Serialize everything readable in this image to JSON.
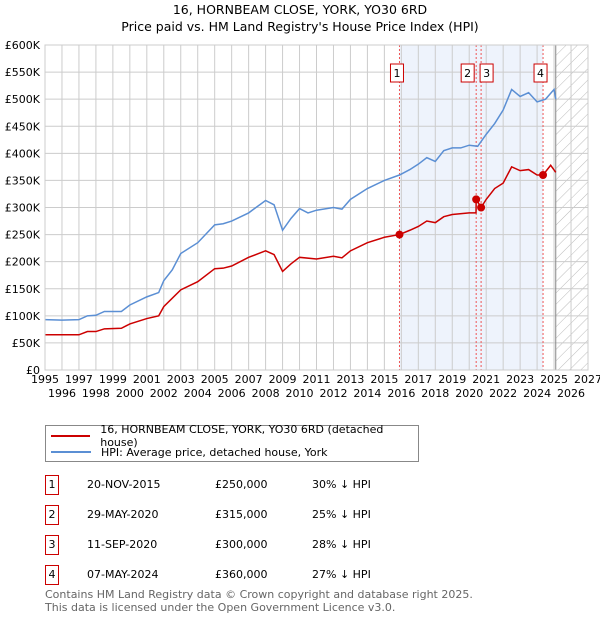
{
  "title": "16, HORNBEAM CLOSE, YORK, YO30 6RD",
  "subtitle": "Price paid vs. HM Land Registry's House Price Index (HPI)",
  "chart_data": {
    "type": "line",
    "title": "16, HORNBEAM CLOSE, YORK, YO30 6RD",
    "subtitle": "Price paid vs. HM Land Registry's House Price Index (HPI)",
    "xlim": [
      1995,
      2027
    ],
    "ylim": [
      0,
      600000
    ],
    "x_ticks": [
      "1995",
      "1996",
      "1997",
      "1998",
      "1999",
      "2000",
      "2001",
      "2002",
      "2003",
      "2004",
      "2005",
      "2006",
      "2007",
      "2008",
      "2009",
      "2010",
      "2011",
      "2012",
      "2013",
      "2014",
      "2015",
      "2016",
      "2017",
      "2018",
      "2019",
      "2020",
      "2021",
      "2022",
      "2023",
      "2024",
      "2025",
      "2026",
      "2027"
    ],
    "y_ticks": [
      "£0",
      "£50K",
      "£100K",
      "£150K",
      "£200K",
      "£250K",
      "£300K",
      "£350K",
      "£400K",
      "£450K",
      "£500K",
      "£550K",
      "£600K"
    ],
    "grid": true,
    "shaded_region": [
      2015.89,
      2024.35
    ],
    "forecast_hatch_from": 2025.1,
    "series": [
      {
        "name": "16, HORNBEAM CLOSE, YORK, YO30 6RD (detached house)",
        "color": "#cc0000",
        "x": [
          1995,
          1996,
          1997,
          1997.5,
          1998,
          1998.5,
          1999.5,
          2000,
          2001,
          2001.7,
          2002,
          2003,
          2004,
          2005,
          2005.5,
          2006,
          2007,
          2008,
          2008.5,
          2009,
          2009.5,
          2010,
          2011,
          2012,
          2012.5,
          2013,
          2014,
          2015,
          2015.89,
          2016.5,
          2017,
          2017.5,
          2018,
          2018.5,
          2019,
          2020,
          2020.4,
          2020.41,
          2020.7,
          2021,
          2021.5,
          2022,
          2022.5,
          2023,
          2023.5,
          2024,
          2024.35,
          2024.8,
          2025.1
        ],
        "y": [
          65000,
          65000,
          65000,
          71000,
          71000,
          76000,
          77000,
          85000,
          95000,
          100000,
          117000,
          148000,
          163000,
          187000,
          188000,
          192000,
          208000,
          220000,
          213000,
          182000,
          196000,
          208000,
          205000,
          210000,
          207000,
          220000,
          235000,
          245000,
          250000,
          258000,
          265000,
          275000,
          272000,
          283000,
          287000,
          290000,
          290000,
          315000,
          300000,
          315000,
          335000,
          345000,
          375000,
          368000,
          370000,
          360000,
          360000,
          378000,
          365000
        ]
      },
      {
        "name": "HPI: Average price, detached house, York",
        "color": "#5b8fd4",
        "x": [
          1995,
          1996,
          1997,
          1997.5,
          1998,
          1998.5,
          1999.5,
          2000,
          2001,
          2001.7,
          2002,
          2002.5,
          2003,
          2004,
          2005,
          2005.5,
          2006,
          2007,
          2008,
          2008.5,
          2009,
          2009.5,
          2010,
          2010.5,
          2011,
          2012,
          2012.5,
          2013,
          2014,
          2015,
          2015.89,
          2016.5,
          2017,
          2017.5,
          2018,
          2018.5,
          2019,
          2019.5,
          2020,
          2020.5,
          2021,
          2021.5,
          2022,
          2022.5,
          2023,
          2023.5,
          2024,
          2024.5,
          2025,
          2025.1
        ],
        "y": [
          93000,
          92000,
          93000,
          100000,
          101000,
          108000,
          108000,
          120000,
          135000,
          143000,
          165000,
          185000,
          215000,
          235000,
          268000,
          270000,
          275000,
          290000,
          313000,
          305000,
          258000,
          280000,
          298000,
          290000,
          295000,
          300000,
          297000,
          315000,
          335000,
          350000,
          360000,
          370000,
          380000,
          392000,
          385000,
          405000,
          410000,
          410000,
          415000,
          413000,
          435000,
          455000,
          480000,
          518000,
          505000,
          512000,
          495000,
          500000,
          518000,
          500000
        ]
      }
    ],
    "sales": [
      {
        "label": "1",
        "x": 2015.89,
        "price": 250000
      },
      {
        "label": "2",
        "x": 2020.41,
        "price": 315000
      },
      {
        "label": "3",
        "x": 2020.7,
        "price": 300000
      },
      {
        "label": "4",
        "x": 2024.35,
        "price": 360000
      }
    ]
  },
  "legend": [
    "16, HORNBEAM CLOSE, YORK, YO30 6RD (detached house)",
    "HPI: Average price, detached house, York"
  ],
  "transactions": [
    {
      "num": "1",
      "date": "20-NOV-2015",
      "price": "£250,000",
      "diff": "30% ↓ HPI"
    },
    {
      "num": "2",
      "date": "29-MAY-2020",
      "price": "£315,000",
      "diff": "25% ↓ HPI"
    },
    {
      "num": "3",
      "date": "11-SEP-2020",
      "price": "£300,000",
      "diff": "28% ↓ HPI"
    },
    {
      "num": "4",
      "date": "07-MAY-2024",
      "price": "£360,000",
      "diff": "27% ↓ HPI"
    }
  ],
  "footer": [
    "Contains HM Land Registry data © Crown copyright and database right 2025.",
    "This data is licensed under the Open Government Licence v3.0."
  ]
}
